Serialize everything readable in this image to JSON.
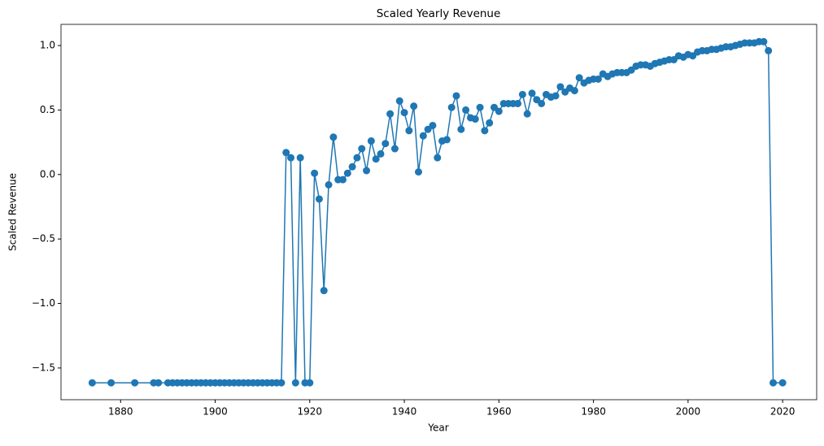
{
  "chart_data": {
    "type": "line",
    "title": "Scaled Yearly Revenue",
    "x_label": "Year",
    "y_label": "Scaled Revenue",
    "x": [
      1874,
      1878,
      1883,
      1887,
      1888,
      1890,
      1891,
      1892,
      1893,
      1894,
      1895,
      1896,
      1897,
      1898,
      1899,
      1900,
      1901,
      1902,
      1903,
      1904,
      1905,
      1906,
      1907,
      1908,
      1909,
      1910,
      1911,
      1912,
      1913,
      1914,
      1915,
      1916,
      1917,
      1918,
      1919,
      1920,
      1921,
      1922,
      1923,
      1924,
      1925,
      1926,
      1927,
      1928,
      1929,
      1930,
      1931,
      1932,
      1933,
      1934,
      1935,
      1936,
      1937,
      1938,
      1939,
      1940,
      1941,
      1942,
      1943,
      1944,
      1945,
      1946,
      1947,
      1948,
      1949,
      1950,
      1951,
      1952,
      1953,
      1954,
      1955,
      1956,
      1957,
      1958,
      1959,
      1960,
      1961,
      1962,
      1963,
      1964,
      1965,
      1966,
      1967,
      1968,
      1969,
      1970,
      1971,
      1972,
      1973,
      1974,
      1975,
      1976,
      1977,
      1978,
      1979,
      1980,
      1981,
      1982,
      1983,
      1984,
      1985,
      1986,
      1987,
      1988,
      1989,
      1990,
      1991,
      1992,
      1993,
      1994,
      1995,
      1996,
      1997,
      1998,
      1999,
      2000,
      2001,
      2002,
      2003,
      2004,
      2005,
      2006,
      2007,
      2008,
      2009,
      2010,
      2011,
      2012,
      2013,
      2014,
      2015,
      2016,
      2017,
      2018,
      2020
    ],
    "series": [
      {
        "name": "Scaled Revenue",
        "color": "#1f77b4",
        "values": [
          -1.615,
          -1.615,
          -1.615,
          -1.615,
          -1.615,
          -1.615,
          -1.615,
          -1.615,
          -1.615,
          -1.615,
          -1.615,
          -1.615,
          -1.615,
          -1.615,
          -1.615,
          -1.615,
          -1.615,
          -1.615,
          -1.615,
          -1.615,
          -1.615,
          -1.615,
          -1.615,
          -1.615,
          -1.615,
          -1.615,
          -1.615,
          -1.615,
          -1.615,
          -1.615,
          0.17,
          0.13,
          -1.615,
          0.13,
          -1.615,
          -1.615,
          0.01,
          -0.19,
          -0.9,
          -0.08,
          0.29,
          -0.04,
          -0.04,
          0.01,
          0.06,
          0.13,
          0.2,
          0.03,
          0.26,
          0.12,
          0.16,
          0.24,
          0.47,
          0.2,
          0.57,
          0.48,
          0.34,
          0.53,
          0.02,
          0.3,
          0.35,
          0.38,
          0.13,
          0.26,
          0.27,
          0.52,
          0.61,
          0.35,
          0.5,
          0.44,
          0.43,
          0.52,
          0.34,
          0.4,
          0.52,
          0.49,
          0.55,
          0.55,
          0.55,
          0.55,
          0.62,
          0.47,
          0.63,
          0.58,
          0.55,
          0.62,
          0.6,
          0.61,
          0.68,
          0.64,
          0.67,
          0.65,
          0.75,
          0.71,
          0.73,
          0.74,
          0.74,
          0.78,
          0.76,
          0.78,
          0.79,
          0.79,
          0.79,
          0.81,
          0.84,
          0.85,
          0.85,
          0.84,
          0.86,
          0.87,
          0.88,
          0.89,
          0.89,
          0.92,
          0.91,
          0.93,
          0.92,
          0.95,
          0.96,
          0.96,
          0.97,
          0.97,
          0.98,
          0.99,
          0.99,
          1.0,
          1.01,
          1.02,
          1.02,
          1.02,
          1.03,
          1.03,
          0.96,
          -1.615,
          -1.615
        ]
      }
    ],
    "xlim": [
      1867.4,
      2027.2
    ],
    "ylim": [
      -1.746,
      1.164
    ],
    "xticks": [
      1880,
      1900,
      1920,
      1940,
      1960,
      1980,
      2000,
      2020
    ],
    "yticks": [
      {
        "value": -1.5,
        "label": "−1.5"
      },
      {
        "value": -1.0,
        "label": "−1.0"
      },
      {
        "value": -0.5,
        "label": "−0.5"
      },
      {
        "value": 0.0,
        "label": "0.0"
      },
      0.5,
      {
        "value": 1.0,
        "label": "1.0"
      }
    ]
  }
}
